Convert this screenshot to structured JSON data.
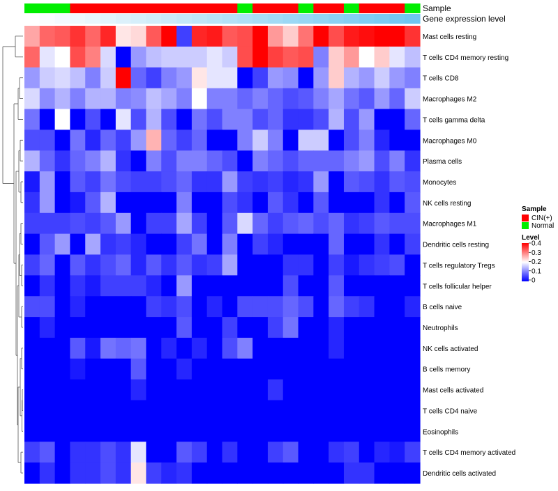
{
  "chart_data": {
    "type": "heatmap",
    "annotations": {
      "sample_label": "Sample",
      "gene_label": "Gene expression level",
      "sample_groups": [
        "Normal",
        "Normal",
        "Normal",
        "CIN(+)",
        "CIN(+)",
        "CIN(+)",
        "CIN(+)",
        "CIN(+)",
        "CIN(+)",
        "CIN(+)",
        "CIN(+)",
        "CIN(+)",
        "CIN(+)",
        "CIN(+)",
        "Normal",
        "CIN(+)",
        "CIN(+)",
        "CIN(+)",
        "Normal",
        "CIN(+)",
        "CIN(+)",
        "Normal",
        "CIN(+)",
        "CIN(+)",
        "CIN(+)",
        "Normal"
      ],
      "gene_levels": [
        0.0,
        0.04,
        0.08,
        0.12,
        0.16,
        0.2,
        0.24,
        0.28,
        0.32,
        0.36,
        0.4,
        0.44,
        0.48,
        0.52,
        0.56,
        0.6,
        0.64,
        0.68,
        0.72,
        0.76,
        0.8,
        0.84,
        0.88,
        0.92,
        0.96,
        1.0
      ]
    },
    "rows": [
      "Mast cells resting",
      "T cells CD4 memory resting",
      "T cells CD8",
      "Macrophages M2",
      "T cells gamma delta",
      "Macrophages M0",
      "Plasma cells",
      "Monocytes",
      "NK cells resting",
      "Macrophages M1",
      "Dendritic cells resting",
      "T cells regulatory  Tregs",
      "T cells follicular helper",
      "B cells naive",
      "Neutrophils",
      "NK cells activated",
      "B cells memory",
      "Mast cells activated",
      "T cells CD4 naive",
      "Eosinophils",
      "T cells CD4 memory activated",
      "Dendritic cells activated"
    ],
    "values": [
      [
        0.27,
        0.32,
        0.33,
        0.36,
        0.32,
        0.37,
        0.22,
        0.23,
        0.33,
        0.4,
        0.05,
        0.37,
        0.38,
        0.33,
        0.34,
        0.4,
        0.28,
        0.24,
        0.31,
        0.4,
        0.34,
        0.38,
        0.39,
        0.4,
        0.4,
        0.36
      ],
      [
        0.32,
        0.18,
        0.2,
        0.34,
        0.3,
        0.17,
        0.0,
        0.12,
        0.15,
        0.16,
        0.16,
        0.16,
        0.18,
        0.16,
        0.34,
        0.4,
        0.35,
        0.33,
        0.34,
        0.1,
        0.24,
        0.28,
        0.2,
        0.24,
        0.18,
        0.15
      ],
      [
        0.12,
        0.16,
        0.17,
        0.15,
        0.1,
        0.16,
        0.4,
        0.08,
        0.05,
        0.1,
        0.12,
        0.22,
        0.18,
        0.18,
        0.0,
        0.05,
        0.12,
        0.11,
        0.0,
        0.12,
        0.24,
        0.14,
        0.12,
        0.16,
        0.12,
        0.1
      ],
      [
        0.17,
        0.11,
        0.14,
        0.1,
        0.14,
        0.14,
        0.1,
        0.11,
        0.15,
        0.13,
        0.1,
        0.2,
        0.1,
        0.1,
        0.08,
        0.1,
        0.08,
        0.06,
        0.07,
        0.1,
        0.13,
        0.09,
        0.07,
        0.12,
        0.08,
        0.16
      ],
      [
        0.09,
        0.0,
        0.2,
        0.0,
        0.06,
        0.0,
        0.18,
        0.06,
        0.14,
        0.06,
        0.0,
        0.09,
        0.06,
        0.1,
        0.1,
        0.06,
        0.08,
        0.04,
        0.04,
        0.06,
        0.14,
        0.06,
        0.12,
        0.0,
        0.0,
        0.08
      ],
      [
        0.06,
        0.06,
        0.0,
        0.09,
        0.03,
        0.08,
        0.05,
        0.12,
        0.26,
        0.08,
        0.05,
        0.08,
        0.0,
        0.0,
        0.1,
        0.16,
        0.1,
        0.0,
        0.16,
        0.16,
        0.0,
        0.06,
        0.1,
        0.03,
        0.0,
        0.0
      ],
      [
        0.14,
        0.08,
        0.04,
        0.08,
        0.1,
        0.14,
        0.04,
        0.0,
        0.1,
        0.06,
        0.1,
        0.1,
        0.08,
        0.06,
        0.0,
        0.1,
        0.08,
        0.06,
        0.08,
        0.08,
        0.08,
        0.1,
        0.12,
        0.06,
        0.1,
        0.04
      ],
      [
        0.02,
        0.12,
        0.0,
        0.07,
        0.05,
        0.09,
        0.06,
        0.05,
        0.05,
        0.06,
        0.08,
        0.04,
        0.04,
        0.12,
        0.05,
        0.04,
        0.05,
        0.03,
        0.04,
        0.12,
        0.0,
        0.07,
        0.06,
        0.04,
        0.07,
        0.06
      ],
      [
        0.04,
        0.12,
        0.0,
        0.02,
        0.07,
        0.14,
        0.0,
        0.0,
        0.0,
        0.0,
        0.1,
        0.0,
        0.0,
        0.06,
        0.04,
        0.0,
        0.07,
        0.04,
        0.0,
        0.07,
        0.0,
        0.0,
        0.0,
        0.04,
        0.0,
        0.07
      ],
      [
        0.05,
        0.05,
        0.05,
        0.06,
        0.05,
        0.07,
        0.12,
        0.0,
        0.05,
        0.05,
        0.13,
        0.05,
        0.0,
        0.07,
        0.17,
        0.08,
        0.05,
        0.07,
        0.08,
        0.06,
        0.08,
        0.04,
        0.05,
        0.07,
        0.06,
        0.06
      ],
      [
        0.0,
        0.07,
        0.12,
        0.0,
        0.13,
        0.04,
        0.05,
        0.03,
        0.0,
        0.0,
        0.05,
        0.09,
        0.0,
        0.1,
        0.0,
        0.05,
        0.03,
        0.0,
        0.0,
        0.0,
        0.08,
        0.0,
        0.0,
        0.04,
        0.0,
        0.05
      ],
      [
        0.05,
        0.08,
        0.0,
        0.07,
        0.04,
        0.06,
        0.08,
        0.03,
        0.07,
        0.04,
        0.07,
        0.04,
        0.05,
        0.13,
        0.0,
        0.0,
        0.0,
        0.04,
        0.04,
        0.0,
        0.05,
        0.02,
        0.04,
        0.05,
        0.06,
        0.0
      ],
      [
        0.0,
        0.04,
        0.0,
        0.04,
        0.02,
        0.05,
        0.05,
        0.05,
        0.03,
        0.0,
        0.12,
        0.0,
        0.0,
        0.0,
        0.0,
        0.0,
        0.0,
        0.06,
        0.0,
        0.0,
        0.07,
        0.0,
        0.0,
        0.0,
        0.0,
        0.0
      ],
      [
        0.06,
        0.06,
        0.0,
        0.03,
        0.0,
        0.0,
        0.0,
        0.0,
        0.05,
        0.04,
        0.06,
        0.0,
        0.03,
        0.0,
        0.06,
        0.06,
        0.06,
        0.08,
        0.06,
        0.0,
        0.08,
        0.05,
        0.04,
        0.0,
        0.0,
        0.03
      ],
      [
        0.0,
        0.03,
        0.0,
        0.0,
        0.0,
        0.0,
        0.0,
        0.0,
        0.0,
        0.0,
        0.07,
        0.0,
        0.0,
        0.05,
        0.0,
        0.0,
        0.05,
        0.09,
        0.0,
        0.0,
        0.03,
        0.0,
        0.0,
        0.0,
        0.0,
        0.0
      ],
      [
        0.0,
        0.0,
        0.0,
        0.07,
        0.02,
        0.09,
        0.08,
        0.09,
        0.0,
        0.03,
        0.0,
        0.03,
        0.0,
        0.06,
        0.1,
        0.0,
        0.0,
        0.0,
        0.0,
        0.0,
        0.03,
        0.0,
        0.0,
        0.0,
        0.0,
        0.0
      ],
      [
        0.0,
        0.0,
        0.0,
        0.02,
        0.0,
        0.0,
        0.0,
        0.07,
        0.0,
        0.0,
        0.03,
        0.0,
        0.0,
        0.0,
        0.0,
        0.0,
        0.0,
        0.0,
        0.0,
        0.0,
        0.0,
        0.0,
        0.0,
        0.0,
        0.0,
        0.0
      ],
      [
        0.0,
        0.0,
        0.0,
        0.0,
        0.0,
        0.0,
        0.0,
        0.03,
        0.0,
        0.0,
        0.0,
        0.0,
        0.0,
        0.0,
        0.0,
        0.0,
        0.04,
        0.0,
        0.0,
        0.0,
        0.0,
        0.0,
        0.0,
        0.0,
        0.0,
        0.0
      ],
      [
        0.0,
        0.0,
        0.0,
        0.0,
        0.0,
        0.0,
        0.0,
        0.0,
        0.0,
        0.0,
        0.0,
        0.0,
        0.0,
        0.0,
        0.0,
        0.0,
        0.0,
        0.0,
        0.0,
        0.0,
        0.0,
        0.0,
        0.0,
        0.0,
        0.0,
        0.0
      ],
      [
        0.0,
        0.0,
        0.0,
        0.0,
        0.0,
        0.0,
        0.0,
        0.0,
        0.0,
        0.0,
        0.0,
        0.0,
        0.0,
        0.0,
        0.0,
        0.0,
        0.0,
        0.0,
        0.0,
        0.0,
        0.0,
        0.0,
        0.0,
        0.0,
        0.0,
        0.0
      ],
      [
        0.05,
        0.07,
        0.0,
        0.04,
        0.04,
        0.06,
        0.04,
        0.18,
        0.0,
        0.0,
        0.07,
        0.05,
        0.0,
        0.04,
        0.0,
        0.0,
        0.05,
        0.07,
        0.0,
        0.0,
        0.04,
        0.05,
        0.0,
        0.03,
        0.02,
        0.05
      ],
      [
        0.0,
        0.04,
        0.0,
        0.04,
        0.04,
        0.06,
        0.04,
        0.22,
        0.05,
        0.03,
        0.04,
        0.0,
        0.0,
        0.0,
        0.0,
        0.0,
        0.0,
        0.0,
        0.0,
        0.0,
        0.0,
        0.04,
        0.04,
        0.0,
        0.0,
        0.0
      ]
    ],
    "value_range": [
      0,
      0.4
    ],
    "legend": {
      "sample_title": "Sample",
      "sample_entries": [
        {
          "label": "CIN(+)",
          "color": "#ff0000"
        },
        {
          "label": "Normal",
          "color": "#00ee00"
        }
      ],
      "level_title": "Level",
      "level_ticks": [
        "0.4",
        "0.3",
        "0.2",
        "0.1",
        "0"
      ],
      "level_tick_values": [
        0.4,
        0.3,
        0.2,
        0.1,
        0
      ],
      "placement": "right"
    },
    "colors": {
      "low": "#0000ff",
      "mid": "#ffffff",
      "high": "#ff0000",
      "gene_low": "#ffffff",
      "gene_high": "#6ec6f0"
    }
  }
}
